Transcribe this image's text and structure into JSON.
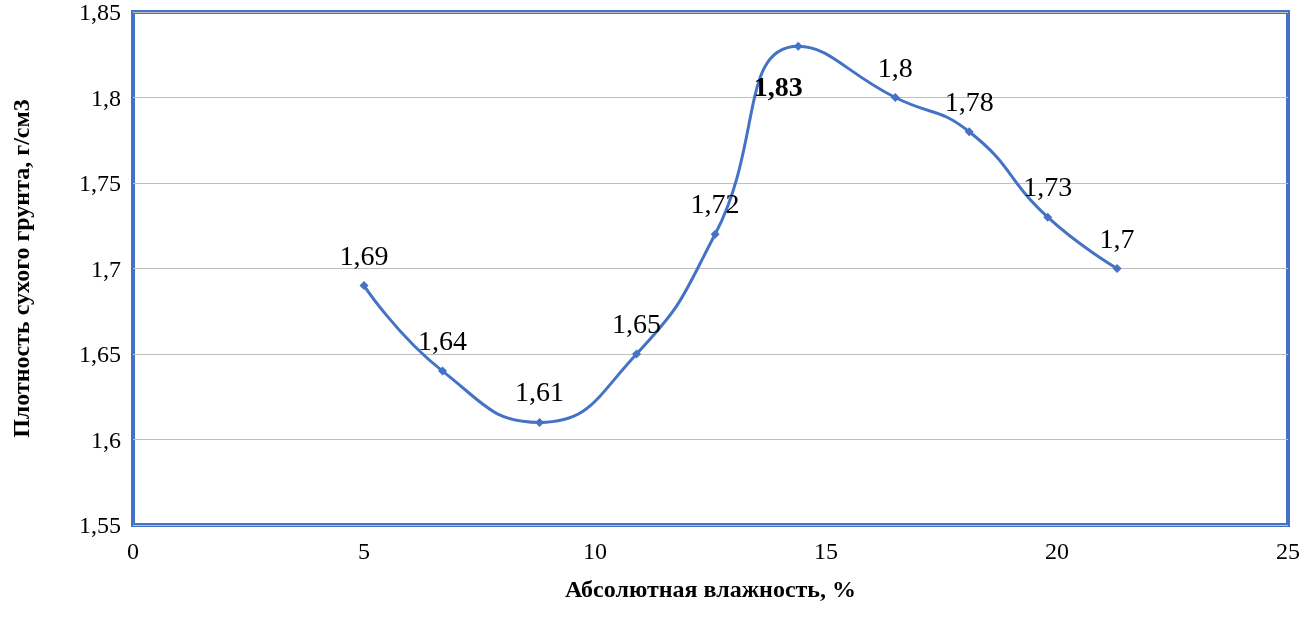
{
  "chart_data": {
    "type": "line",
    "xlabel": "Абсолютная влажность, %",
    "ylabel": "Плотность сухого грунта, г/см3",
    "x": [
      5,
      6.7,
      8.8,
      10.9,
      12.6,
      14.4,
      16.5,
      18.1,
      19.8,
      21.3
    ],
    "series": [
      {
        "color": "#4472c4",
        "values": [
          1.69,
          1.64,
          1.61,
          1.65,
          1.72,
          1.83,
          1.8,
          1.78,
          1.73,
          1.7
        ],
        "value_labels": [
          "1,69",
          "1,64",
          "1,61",
          "1,65",
          "1,72",
          "1,83",
          "1,8",
          "1,78",
          "1,73",
          "1,7"
        ]
      }
    ],
    "xlim": [
      0,
      25
    ],
    "xticks": [
      0,
      5,
      10,
      15,
      20,
      25
    ],
    "ylim": [
      1.55,
      1.85
    ],
    "yticks": [
      {
        "value": 1.55,
        "label": "1,55"
      },
      {
        "value": 1.6,
        "label": "1,6"
      },
      {
        "value": 1.65,
        "label": "1,65"
      },
      {
        "value": 1.7,
        "label": "1,7"
      },
      {
        "value": 1.75,
        "label": "1,75"
      },
      {
        "value": 1.8,
        "label": "1,8"
      },
      {
        "value": 1.85,
        "label": "1,85"
      }
    ],
    "grid": "y",
    "marker": "diamond",
    "line_style": "solid"
  }
}
